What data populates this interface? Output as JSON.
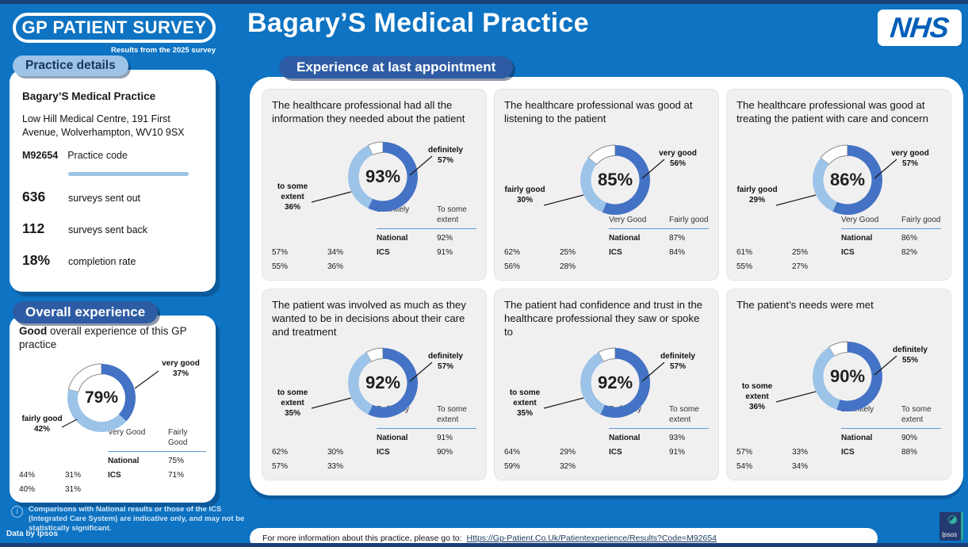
{
  "theme": {
    "page_blue": "#0d73c2",
    "strip_navy": "#1a3f76",
    "pill_navy": "#2d5ca4",
    "pill_light_blue": "#9dc3e6",
    "donut_dark": "#4472C4",
    "donut_light": "#9CC3E8",
    "table_line_blue": "#5B9BD5",
    "nhs_blue": "#005eb8"
  },
  "header": {
    "logo_text": "GP PATIENT SURVEY",
    "logo_subtitle": "Results from the 2025 survey",
    "practice_title": "Bagary’S Medical Practice",
    "nhs_logo": "NHS"
  },
  "sidebar": {
    "section_label": "Practice details",
    "practice": {
      "name": "Bagary’S Medical Practice",
      "address": "Low Hill Medical Centre, 191 First Avenue, Wolverhampton, WV10 9SX",
      "code_value": "M92654",
      "code_label": "Practice code",
      "stats": [
        {
          "value": "636",
          "label": "surveys sent out"
        },
        {
          "value": "112",
          "label": "surveys sent back"
        },
        {
          "value": "18%",
          "label": "completion rate"
        }
      ]
    },
    "overall_section_label": "Overall experience"
  },
  "main": {
    "section_label": "Experience at last appointment"
  },
  "footer": {
    "info_note": "Comparisons with National results or those of the ICS (Integrated Care System) are indicative only, and may not be statistically significant.",
    "data_by": "Data by Ipsos",
    "more_info_text": "For more information about this practice, please go to:",
    "link": "Https://Gp-Patient.Co.Uk/Patientexperience/Results?Code=M92654",
    "ipsos_logo": "Ipsos"
  },
  "chart_data": [
    {
      "id": "overall-experience",
      "type": "donut",
      "title": "Good overall experience of this GP practice",
      "title_bold": "Good",
      "title_rest": " overall experience of this GP practice",
      "center_label": "79%",
      "slices": [
        {
          "label": "very good",
          "value": 37
        },
        {
          "label": "fairly good",
          "value": 42
        }
      ],
      "callout_right": "very good\n37%",
      "callout_left": "fairly good\n42%",
      "table": {
        "columns": [
          "Very Good",
          "Fairly Good"
        ],
        "rows": [
          [
            "National",
            "75%",
            "44%",
            "31%"
          ],
          [
            "ICS",
            "71%",
            "40%",
            "31%"
          ]
        ]
      }
    },
    {
      "id": "information-needed",
      "type": "donut",
      "title": "The healthcare professional had all the information they needed about the patient",
      "center_label": "93%",
      "slices": [
        {
          "label": "definitely",
          "value": 57
        },
        {
          "label": "to some extent",
          "value": 36
        }
      ],
      "callout_right": "definitely\n57%",
      "callout_left": "to some\nextent\n36%",
      "table": {
        "columns": [
          "Definitely",
          "To some extent"
        ],
        "rows": [
          [
            "National",
            "92%",
            "57%",
            "34%"
          ],
          [
            "ICS",
            "91%",
            "55%",
            "36%"
          ]
        ]
      }
    },
    {
      "id": "good-listening",
      "type": "donut",
      "title": "The healthcare professional was good at listening to the patient",
      "center_label": "85%",
      "slices": [
        {
          "label": "very good",
          "value": 56
        },
        {
          "label": "fairly good",
          "value": 30
        }
      ],
      "callout_right": "very good\n56%",
      "callout_left": "fairly good\n30%",
      "table": {
        "columns": [
          "Very Good",
          "Fairly good"
        ],
        "rows": [
          [
            "National",
            "87%",
            "62%",
            "25%"
          ],
          [
            "ICS",
            "84%",
            "56%",
            "28%"
          ]
        ]
      }
    },
    {
      "id": "care-and-concern",
      "type": "donut",
      "title": "The healthcare professional was good at treating the patient with care and concern",
      "center_label": "86%",
      "slices": [
        {
          "label": "very good",
          "value": 57
        },
        {
          "label": "fairly good",
          "value": 29
        }
      ],
      "callout_right": "very good\n57%",
      "callout_left": "fairly good\n29%",
      "table": {
        "columns": [
          "Very Good",
          "Fairly good"
        ],
        "rows": [
          [
            "National",
            "86%",
            "61%",
            "25%"
          ],
          [
            "ICS",
            "82%",
            "55%",
            "27%"
          ]
        ]
      }
    },
    {
      "id": "involved-in-decisions",
      "type": "donut",
      "title": "The patient was involved as much as they wanted to be in decisions about their care and treatment",
      "center_label": "92%",
      "slices": [
        {
          "label": "definitely",
          "value": 57
        },
        {
          "label": "to some extent",
          "value": 35
        }
      ],
      "callout_right": "definitely\n57%",
      "callout_left": "to some\nextent\n35%",
      "table": {
        "columns": [
          "Definitely",
          "To some extent"
        ],
        "rows": [
          [
            "National",
            "91%",
            "62%",
            "30%"
          ],
          [
            "ICS",
            "90%",
            "57%",
            "33%"
          ]
        ]
      }
    },
    {
      "id": "confidence-and-trust",
      "type": "donut",
      "title": "The patient had confidence and trust in the healthcare professional they saw or spoke to",
      "center_label": "92%",
      "slices": [
        {
          "label": "definitely",
          "value": 57
        },
        {
          "label": "to some extent",
          "value": 35
        }
      ],
      "callout_right": "definitely\n57%",
      "callout_left": "to some\nextent\n35%",
      "table": {
        "columns": [
          "Definitely",
          "To some extent"
        ],
        "rows": [
          [
            "National",
            "93%",
            "64%",
            "29%"
          ],
          [
            "ICS",
            "91%",
            "59%",
            "32%"
          ]
        ]
      }
    },
    {
      "id": "needs-met",
      "type": "donut",
      "title": "The patient’s needs were met",
      "center_label": "90%",
      "slices": [
        {
          "label": "definitely",
          "value": 55
        },
        {
          "label": "to some extent",
          "value": 36
        }
      ],
      "callout_right": "definitely\n55%",
      "callout_left": "to some\nextent\n36%",
      "table": {
        "columns": [
          "Definitely",
          "To some extent"
        ],
        "rows": [
          [
            "National",
            "90%",
            "57%",
            "33%"
          ],
          [
            "ICS",
            "88%",
            "54%",
            "34%"
          ]
        ]
      }
    }
  ]
}
